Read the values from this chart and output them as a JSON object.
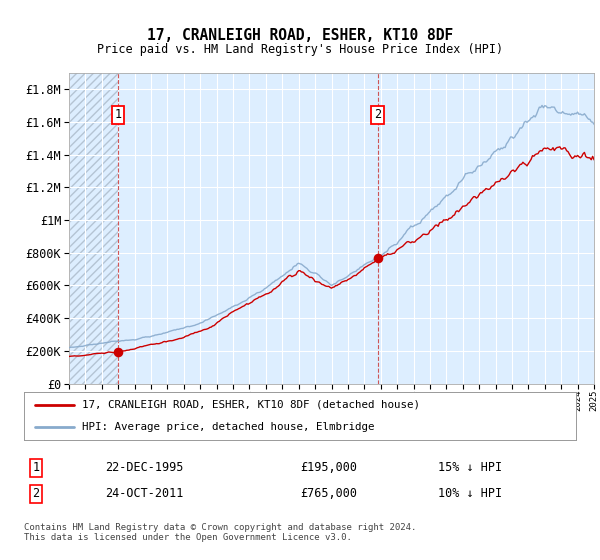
{
  "title": "17, CRANLEIGH ROAD, ESHER, KT10 8DF",
  "subtitle": "Price paid vs. HM Land Registry's House Price Index (HPI)",
  "red_line_label": "17, CRANLEIGH ROAD, ESHER, KT10 8DF (detached house)",
  "blue_line_label": "HPI: Average price, detached house, Elmbridge",
  "transaction1_box": "1",
  "transaction1_date": "22-DEC-1995",
  "transaction1_price": "£195,000",
  "transaction1_hpi": "15% ↓ HPI",
  "transaction2_box": "2",
  "transaction2_date": "24-OCT-2011",
  "transaction2_price": "£765,000",
  "transaction2_hpi": "10% ↓ HPI",
  "footnote": "Contains HM Land Registry data © Crown copyright and database right 2024.\nThis data is licensed under the Open Government Licence v3.0.",
  "ylim": [
    0,
    1900000
  ],
  "yticks": [
    0,
    200000,
    400000,
    600000,
    800000,
    1000000,
    1200000,
    1400000,
    1600000,
    1800000
  ],
  "ytick_labels": [
    "£0",
    "£200K",
    "£400K",
    "£600K",
    "£800K",
    "£1M",
    "£1.2M",
    "£1.4M",
    "£1.6M",
    "£1.8M"
  ],
  "x_start_year": 1993,
  "x_end_year": 2025,
  "transaction1_year": 1995.97,
  "transaction1_value": 195000,
  "transaction2_year": 2011.81,
  "transaction2_value": 765000,
  "bg_color": "#ddeeff",
  "hatch_left_color": "#c0cfdf",
  "grid_color": "#ffffff",
  "red_color": "#cc0000",
  "blue_color": "#88aacc",
  "blue_fill_color": "#bbccdd"
}
